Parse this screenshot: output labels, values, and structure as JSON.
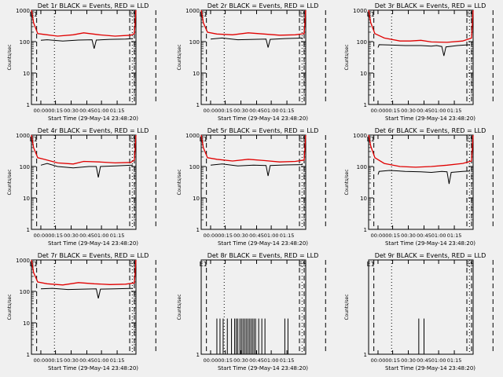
{
  "colors": {
    "background": "#f0f0f0",
    "events": "#000000",
    "lld": "#e00000",
    "axis": "#000000"
  },
  "chart_data": [
    {
      "type": "line",
      "title": "Det 1r BLACK = Events, RED = LLD",
      "xlabel": "Start Time (29-May-14 23:48:20)",
      "ylabel": "Counts/sec",
      "yscale": "log",
      "ylim": [
        1,
        1000
      ],
      "yticks": [
        "1",
        "10",
        "100",
        "1000"
      ],
      "xticks": [
        "00:00",
        "00:15",
        "00:30",
        "00:45",
        "01:00",
        "01:15"
      ],
      "markers": [
        "E1",
        "E5"
      ],
      "series": [
        {
          "name": "Events",
          "points": [
            [
              0.09,
              110
            ],
            [
              0.15,
              115
            ],
            [
              0.3,
              105
            ],
            [
              0.45,
              112
            ],
            [
              0.58,
              115
            ],
            [
              0.6,
              60
            ],
            [
              0.62,
              112
            ],
            [
              0.75,
              118
            ],
            [
              0.9,
              120
            ],
            [
              0.97,
              125
            ]
          ]
        },
        {
          "name": "LLD",
          "points": [
            [
              0,
              1000
            ],
            [
              0.02,
              400
            ],
            [
              0.06,
              180
            ],
            [
              0.12,
              170
            ],
            [
              0.25,
              150
            ],
            [
              0.4,
              165
            ],
            [
              0.5,
              190
            ],
            [
              0.65,
              165
            ],
            [
              0.8,
              150
            ],
            [
              0.95,
              160
            ],
            [
              0.985,
              180
            ],
            [
              1,
              1000
            ]
          ]
        }
      ]
    },
    {
      "type": "line",
      "title": "Det 2r BLACK = Events, RED = LLD",
      "xlabel": "Start Time (29-May-14 23:48:20)",
      "ylabel": "Counts/sec",
      "yscale": "log",
      "ylim": [
        1,
        1000
      ],
      "yticks": [
        "1",
        "10",
        "100",
        "1000"
      ],
      "xticks": [
        "00:00",
        "00:15",
        "00:30",
        "00:45",
        "01:00",
        "01:15"
      ],
      "markers": [
        "E1",
        "E5"
      ],
      "series": [
        {
          "name": "Events",
          "points": [
            [
              0.09,
              120
            ],
            [
              0.2,
              130
            ],
            [
              0.35,
              115
            ],
            [
              0.5,
              118
            ],
            [
              0.62,
              120
            ],
            [
              0.64,
              65
            ],
            [
              0.66,
              118
            ],
            [
              0.8,
              125
            ],
            [
              0.97,
              130
            ]
          ]
        },
        {
          "name": "LLD",
          "points": [
            [
              0,
              1000
            ],
            [
              0.02,
              400
            ],
            [
              0.06,
              200
            ],
            [
              0.15,
              175
            ],
            [
              0.3,
              165
            ],
            [
              0.45,
              190
            ],
            [
              0.6,
              175
            ],
            [
              0.75,
              160
            ],
            [
              0.9,
              165
            ],
            [
              0.985,
              180
            ],
            [
              1,
              1000
            ]
          ]
        }
      ]
    },
    {
      "type": "line",
      "title": "Det 3r BLACK = Events, RED = LLD",
      "xlabel": "Start Time (29-May-14 23:48:20)",
      "ylabel": "Counts/sec",
      "yscale": "log",
      "ylim": [
        1,
        1000
      ],
      "yticks": [
        "1",
        "10",
        "100",
        "1000"
      ],
      "xticks": [
        "00:00",
        "00:15",
        "00:30",
        "00:45",
        "01:00",
        "01:15"
      ],
      "markers": [
        "E1",
        "E5"
      ],
      "series": [
        {
          "name": "Events",
          "points": [
            [
              0.09,
              65
            ],
            [
              0.1,
              80
            ],
            [
              0.2,
              78
            ],
            [
              0.35,
              75
            ],
            [
              0.5,
              75
            ],
            [
              0.6,
              72
            ],
            [
              0.65,
              75
            ],
            [
              0.7,
              70
            ],
            [
              0.72,
              35
            ],
            [
              0.74,
              68
            ],
            [
              0.85,
              75
            ],
            [
              0.97,
              80
            ]
          ]
        },
        {
          "name": "LLD",
          "points": [
            [
              0,
              1000
            ],
            [
              0.02,
              400
            ],
            [
              0.06,
              180
            ],
            [
              0.15,
              130
            ],
            [
              0.3,
              105
            ],
            [
              0.4,
              105
            ],
            [
              0.5,
              110
            ],
            [
              0.6,
              98
            ],
            [
              0.75,
              95
            ],
            [
              0.9,
              105
            ],
            [
              0.985,
              130
            ],
            [
              1,
              1000
            ]
          ]
        }
      ]
    },
    {
      "type": "line",
      "title": "Det 4r BLACK = Events, RED = LLD",
      "xlabel": "Start Time (29-May-14 23:48:20)",
      "ylabel": "Counts/sec",
      "yscale": "log",
      "ylim": [
        1,
        1000
      ],
      "yticks": [
        "1",
        "10",
        "100",
        "1000"
      ],
      "xticks": [
        "00:00",
        "00:15",
        "00:30",
        "00:45",
        "01:00",
        "01:15"
      ],
      "markers": [
        "E1",
        "E5"
      ],
      "series": [
        {
          "name": "Events",
          "points": [
            [
              0.09,
              110
            ],
            [
              0.15,
              125
            ],
            [
              0.25,
              100
            ],
            [
              0.4,
              90
            ],
            [
              0.55,
              100
            ],
            [
              0.62,
              100
            ],
            [
              0.64,
              45
            ],
            [
              0.66,
              100
            ],
            [
              0.8,
              105
            ],
            [
              0.97,
              110
            ]
          ]
        },
        {
          "name": "LLD",
          "points": [
            [
              0,
              1000
            ],
            [
              0.02,
              400
            ],
            [
              0.06,
              190
            ],
            [
              0.12,
              170
            ],
            [
              0.25,
              130
            ],
            [
              0.4,
              120
            ],
            [
              0.5,
              145
            ],
            [
              0.65,
              140
            ],
            [
              0.8,
              130
            ],
            [
              0.95,
              135
            ],
            [
              0.985,
              160
            ],
            [
              1,
              1000
            ]
          ]
        }
      ]
    },
    {
      "type": "line",
      "title": "Det 5r BLACK = Events, RED = LLD",
      "xlabel": "Start Time (29-May-14 23:48:20)",
      "ylabel": "Counts/sec",
      "yscale": "log",
      "ylim": [
        1,
        1000
      ],
      "yticks": [
        "1",
        "10",
        "100",
        "1000"
      ],
      "xticks": [
        "00:00",
        "00:15",
        "00:30",
        "00:45",
        "01:00",
        "01:15"
      ],
      "markers": [
        "E1",
        "E5"
      ],
      "series": [
        {
          "name": "Events",
          "points": [
            [
              0.09,
              110
            ],
            [
              0.2,
              120
            ],
            [
              0.35,
              105
            ],
            [
              0.5,
              110
            ],
            [
              0.62,
              108
            ],
            [
              0.64,
              50
            ],
            [
              0.66,
              108
            ],
            [
              0.8,
              112
            ],
            [
              0.97,
              115
            ]
          ]
        },
        {
          "name": "LLD",
          "points": [
            [
              0,
              1000
            ],
            [
              0.02,
              400
            ],
            [
              0.06,
              190
            ],
            [
              0.15,
              170
            ],
            [
              0.3,
              150
            ],
            [
              0.45,
              170
            ],
            [
              0.6,
              155
            ],
            [
              0.75,
              140
            ],
            [
              0.9,
              145
            ],
            [
              0.985,
              160
            ],
            [
              1,
              1000
            ]
          ]
        }
      ]
    },
    {
      "type": "line",
      "title": "Det 6r BLACK = Events, RED = LLD",
      "xlabel": "Start Time (29-May-14 23:48:20)",
      "ylabel": "Counts/sec",
      "yscale": "log",
      "ylim": [
        1,
        1000
      ],
      "yticks": [
        "1",
        "10",
        "100",
        "1000"
      ],
      "xticks": [
        "00:00",
        "00:15",
        "00:30",
        "00:45",
        "01:00",
        "01:15"
      ],
      "markers": [
        "E1",
        "E5"
      ],
      "series": [
        {
          "name": "Events",
          "points": [
            [
              0.09,
              55
            ],
            [
              0.1,
              70
            ],
            [
              0.2,
              75
            ],
            [
              0.35,
              70
            ],
            [
              0.5,
              68
            ],
            [
              0.6,
              65
            ],
            [
              0.7,
              70
            ],
            [
              0.75,
              68
            ],
            [
              0.77,
              28
            ],
            [
              0.79,
              65
            ],
            [
              0.9,
              70
            ],
            [
              0.97,
              72
            ]
          ]
        },
        {
          "name": "LLD",
          "points": [
            [
              0,
              1000
            ],
            [
              0.02,
              450
            ],
            [
              0.06,
              190
            ],
            [
              0.15,
              125
            ],
            [
              0.3,
              100
            ],
            [
              0.45,
              95
            ],
            [
              0.6,
              100
            ],
            [
              0.75,
              110
            ],
            [
              0.9,
              125
            ],
            [
              0.985,
              150
            ],
            [
              1,
              1000
            ]
          ]
        }
      ]
    },
    {
      "type": "line",
      "title": "Det 7r BLACK = Events, RED = LLD",
      "xlabel": "Start Time (29-May-14 23:48:20)",
      "ylabel": "Counts/sec",
      "yscale": "log",
      "ylim": [
        1,
        1000
      ],
      "yticks": [
        "1",
        "10",
        "100",
        "1000"
      ],
      "xticks": [
        "00:00",
        "00:15",
        "00:30",
        "00:45",
        "01:00",
        "01:15"
      ],
      "markers": [
        "E1",
        "E5"
      ],
      "series": [
        {
          "name": "Events",
          "points": [
            [
              0.09,
              120
            ],
            [
              0.2,
              125
            ],
            [
              0.35,
              115
            ],
            [
              0.5,
              118
            ],
            [
              0.62,
              120
            ],
            [
              0.64,
              60
            ],
            [
              0.66,
              118
            ],
            [
              0.8,
              120
            ],
            [
              0.97,
              125
            ]
          ]
        },
        {
          "name": "LLD",
          "points": [
            [
              0,
              1000
            ],
            [
              0.02,
              400
            ],
            [
              0.06,
              200
            ],
            [
              0.15,
              175
            ],
            [
              0.3,
              160
            ],
            [
              0.45,
              190
            ],
            [
              0.6,
              175
            ],
            [
              0.75,
              165
            ],
            [
              0.9,
              170
            ],
            [
              0.985,
              185
            ],
            [
              1,
              1000
            ]
          ]
        }
      ]
    },
    {
      "type": "line",
      "title": "Det 8r BLACK = Events, RED = LLD",
      "xlabel": "Start Time (29-May-14 23:48:20)",
      "ylabel": "Counts/sec",
      "yscale": "log",
      "ylim": [
        1,
        2
      ],
      "yticks": [
        "1"
      ],
      "xticks": [
        "00:00",
        "00:15",
        "00:30",
        "00:45",
        "01:00",
        "01:15"
      ],
      "markers": [
        "E1",
        "E5"
      ],
      "spike_series": {
        "name": "Events",
        "value": 1.3,
        "x": [
          0.15,
          0.18,
          0.21,
          0.25,
          0.29,
          0.32,
          0.335,
          0.35,
          0.37,
          0.385,
          0.4,
          0.415,
          0.43,
          0.445,
          0.46,
          0.475,
          0.49,
          0.505,
          0.52,
          0.55,
          0.58,
          0.61,
          0.8,
          0.83
        ]
      }
    },
    {
      "type": "line",
      "title": "Det 9r BLACK = Events, RED = LLD",
      "xlabel": "Start Time (29-May-14 23:48:20)",
      "ylabel": "Counts/sec",
      "yscale": "log",
      "ylim": [
        1,
        2
      ],
      "yticks": [
        "1"
      ],
      "xticks": [
        "00:00",
        "00:15",
        "00:30",
        "00:45",
        "01:00",
        "01:15"
      ],
      "markers": [
        "E1",
        "E5"
      ],
      "spike_series": {
        "name": "Events",
        "value": 1.3,
        "x": [
          0.48,
          0.53
        ]
      }
    }
  ]
}
